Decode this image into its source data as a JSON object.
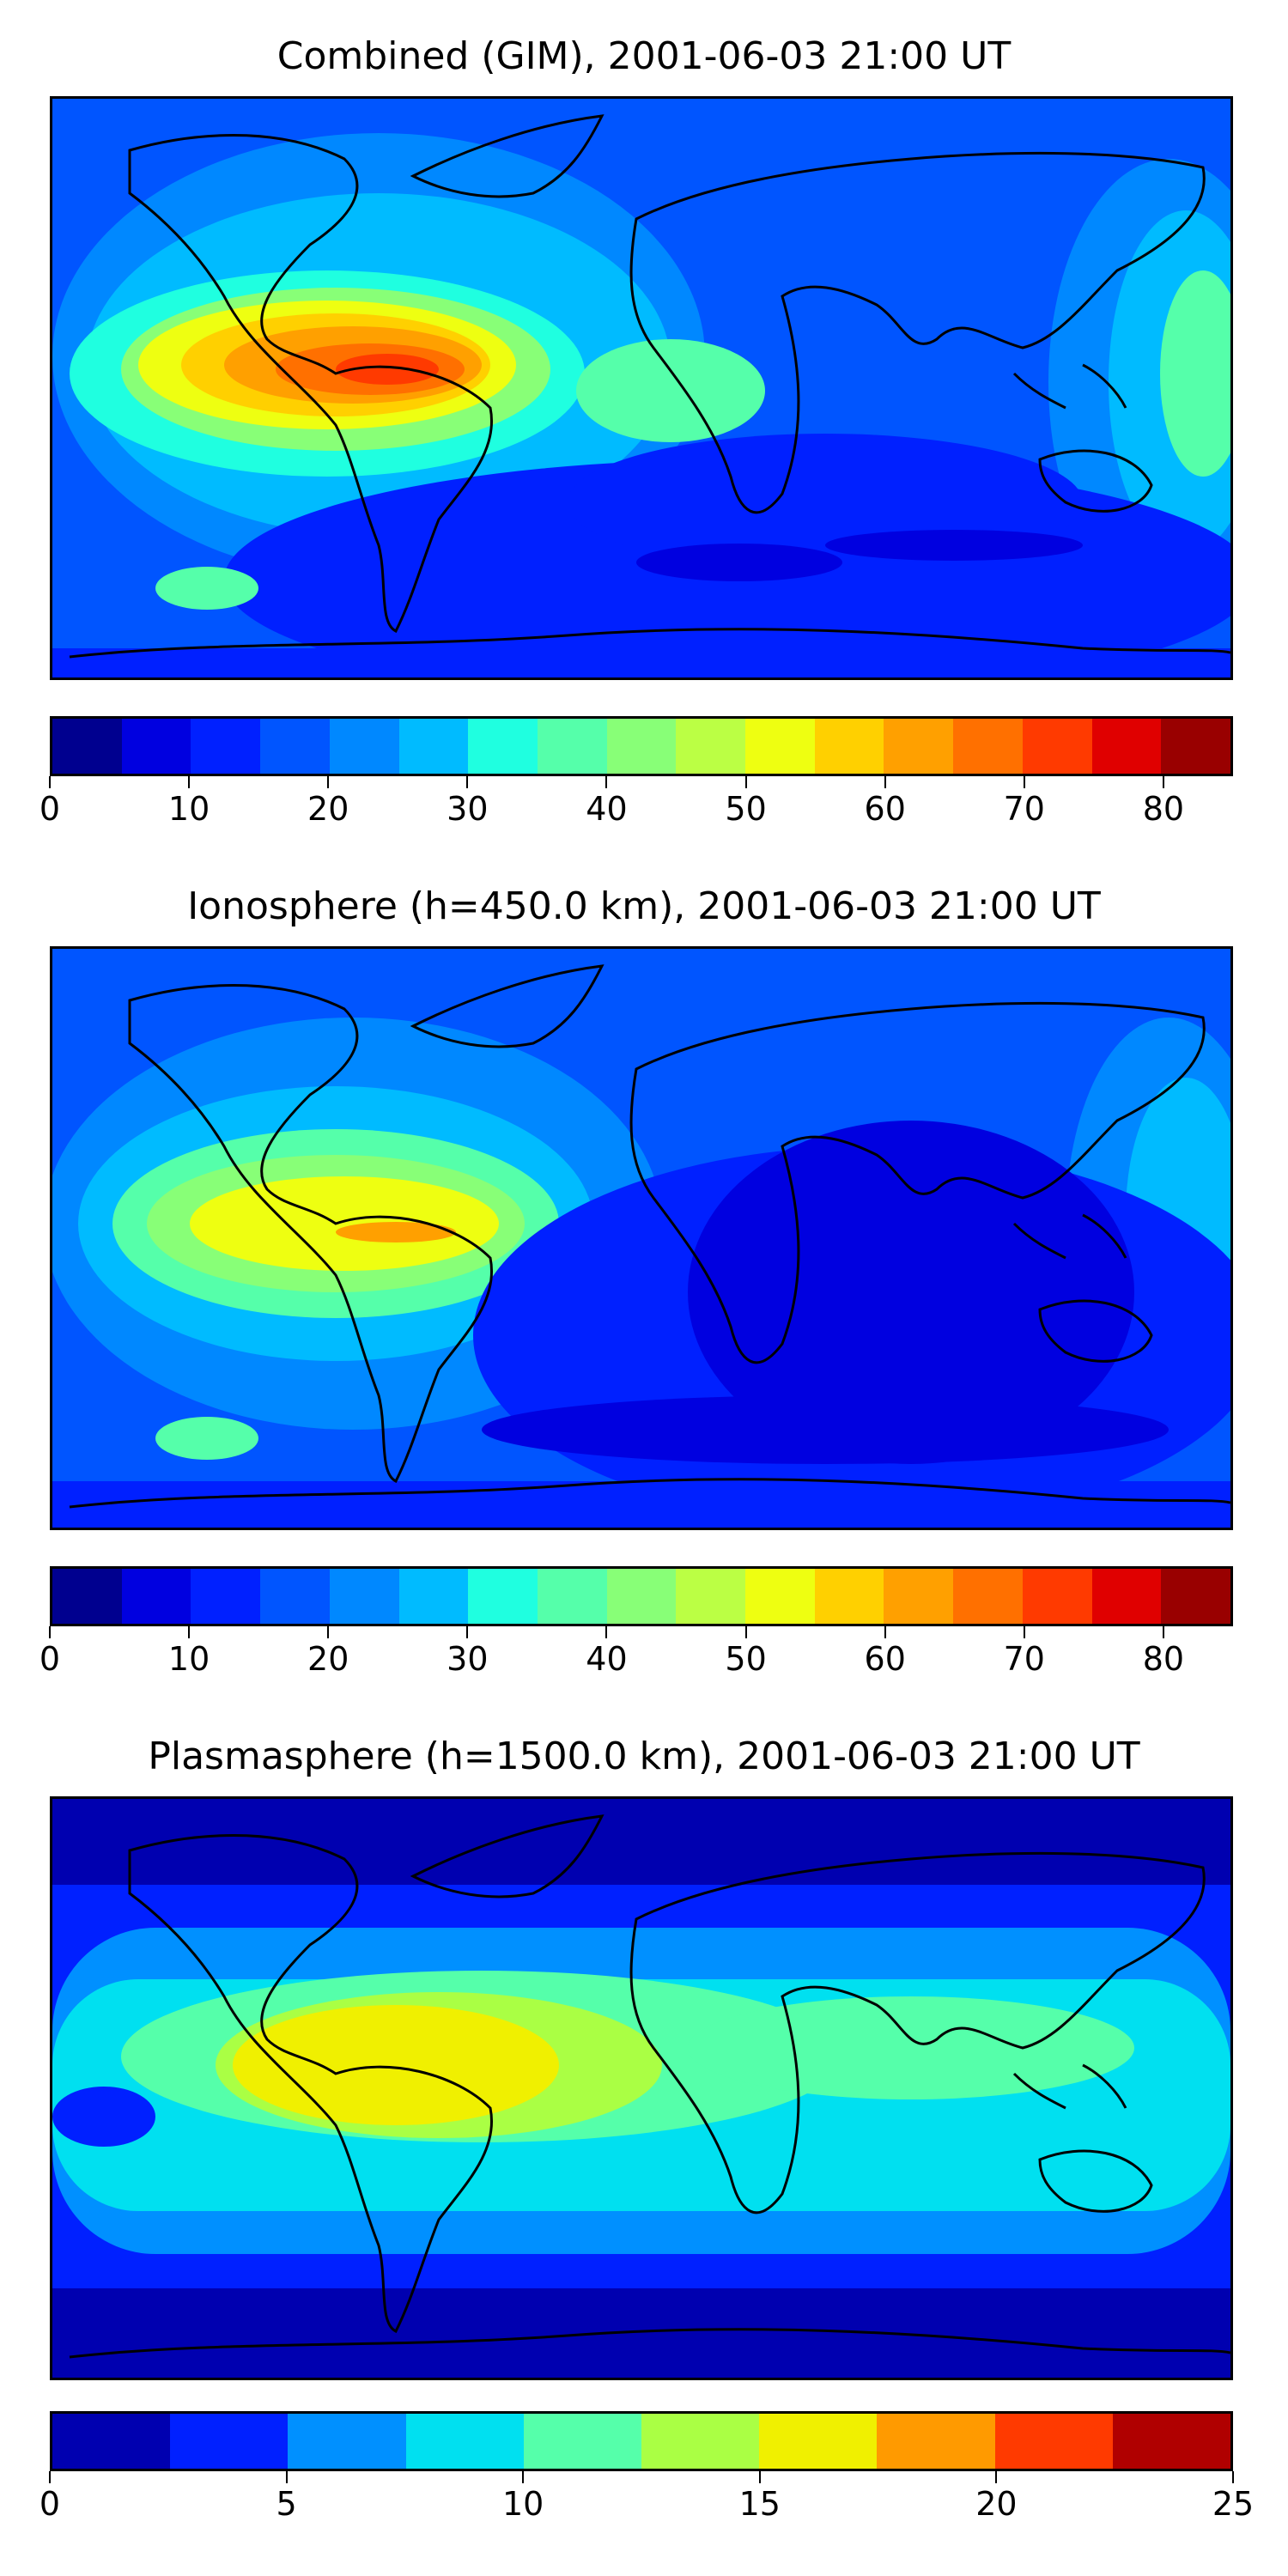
{
  "panels": [
    {
      "title": "Combined (GIM), 2001-06-03 21:00 UT",
      "colorbar": {
        "min": 0,
        "max": 85,
        "step": 5,
        "ticks": [
          "0",
          "10",
          "20",
          "30",
          "40",
          "50",
          "60",
          "70",
          "80"
        ],
        "tick_values": [
          0,
          10,
          20,
          30,
          40,
          50,
          60,
          70,
          80
        ],
        "colors": [
          "#00008f",
          "#0000e0",
          "#0020ff",
          "#0055ff",
          "#0088ff",
          "#00bbff",
          "#1fffe0",
          "#55ffaa",
          "#88ff77",
          "#bbff44",
          "#eeff11",
          "#ffd000",
          "#ffa000",
          "#ff7000",
          "#ff3a00",
          "#e00000",
          "#990000"
        ]
      },
      "map_fill": [
        "#0055ff",
        "#0088ff",
        "#00bbff",
        "#1fffe0",
        "#88ff77",
        "#eeff11",
        "#ffa000",
        "#ff3a00"
      ]
    },
    {
      "title": "Ionosphere  (h=450.0 km), 2001-06-03 21:00 UT",
      "colorbar": {
        "min": 0,
        "max": 85,
        "step": 5,
        "ticks": [
          "0",
          "10",
          "20",
          "30",
          "40",
          "50",
          "60",
          "70",
          "80"
        ],
        "tick_values": [
          0,
          10,
          20,
          30,
          40,
          50,
          60,
          70,
          80
        ],
        "colors": [
          "#00008f",
          "#0000e0",
          "#0020ff",
          "#0055ff",
          "#0088ff",
          "#00bbff",
          "#1fffe0",
          "#55ffaa",
          "#88ff77",
          "#bbff44",
          "#eeff11",
          "#ffd000",
          "#ffa000",
          "#ff7000",
          "#ff3a00",
          "#e00000",
          "#990000"
        ]
      },
      "map_fill": [
        "#0020ff",
        "#0055ff",
        "#0088ff",
        "#00bbff",
        "#88ff77",
        "#bbff44",
        "#eeff11",
        "#ffa000"
      ]
    },
    {
      "title": "Plasmasphere (h=1500.0 km), 2001-06-03 21:00 UT",
      "colorbar": {
        "min": 0,
        "max": 25,
        "step": 2.5,
        "ticks": [
          "0",
          "5",
          "10",
          "15",
          "20",
          "25"
        ],
        "tick_values": [
          0,
          5,
          10,
          15,
          20,
          25
        ],
        "colors": [
          "#0000b0",
          "#0020ff",
          "#0090ff",
          "#00e0f0",
          "#55ffaa",
          "#aaff44",
          "#f0f000",
          "#ff9a00",
          "#ff3a00",
          "#b00000"
        ]
      },
      "map_fill": [
        "#0000b0",
        "#0020ff",
        "#0090ff",
        "#00e0f0",
        "#55ffaa",
        "#aaff44",
        "#f0f000"
      ]
    }
  ]
}
